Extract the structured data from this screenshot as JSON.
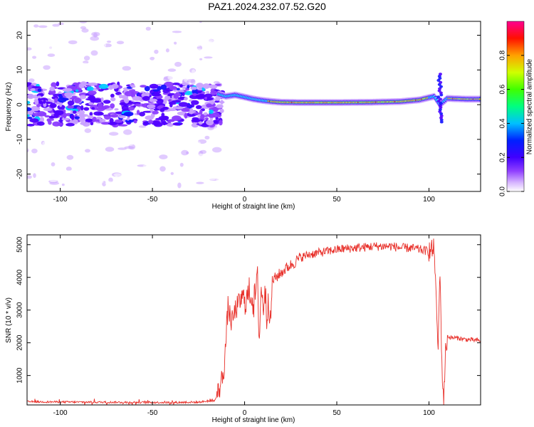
{
  "title": "PAZ1.2024.232.07.52.G20",
  "chart_data": [
    {
      "type": "heatmap",
      "title": "PAZ1.2024.232.07.52.G20",
      "xlabel": "Height of straight line (km)",
      "ylabel": "Frequency (Hz)",
      "xlim": [
        -118,
        128
      ],
      "ylim": [
        -25,
        24
      ],
      "xticks": [
        "-100",
        "-50",
        "0",
        "50",
        "100"
      ],
      "yticks": [
        "20",
        "10",
        "0",
        "-10",
        "-20"
      ],
      "colorbar": {
        "label": "Normalized spectral amplitude",
        "range": [
          0,
          1
        ],
        "ticks": [
          "0.0",
          "0.2",
          "0.4",
          "0.6",
          "0.8"
        ],
        "colors": [
          "#ffffff",
          "#b080ff",
          "#6000ff",
          "#0000ff",
          "#00e0ff",
          "#00ff60",
          "#c0ff00",
          "#ffb000",
          "#ff0000",
          "#ff00a0"
        ]
      },
      "signal_trace": {
        "description_free": true,
        "x": [
          -14,
          -10,
          -5,
          0,
          5,
          10,
          15,
          20,
          30,
          50,
          70,
          85,
          95,
          103,
          106,
          110,
          120,
          128
        ],
        "y": [
          3.0,
          2.4,
          2.8,
          2.2,
          1.6,
          1.2,
          0.9,
          0.7,
          0.6,
          0.6,
          0.7,
          0.9,
          1.4,
          2.4,
          0.0,
          1.8,
          1.6,
          1.6
        ]
      },
      "grid": false
    },
    {
      "type": "line",
      "xlabel": "Height of straight line (km)",
      "ylabel": "SNR (10 * v/v)",
      "xlim": [
        -118,
        128
      ],
      "ylim": [
        100,
        5300
      ],
      "xticks": [
        "-100",
        "-50",
        "0",
        "50",
        "100"
      ],
      "yticks": [
        "5000",
        "4000",
        "3000",
        "2000",
        "1000"
      ],
      "color": "#e8302a",
      "series": [
        {
          "x": [
            -118,
            -100,
            -80,
            -60,
            -40,
            -25,
            -16,
            -13,
            -11,
            -9,
            -7,
            -5,
            -3,
            -1,
            1,
            3,
            5,
            7,
            8,
            9,
            10,
            11,
            12,
            13,
            14,
            15,
            17,
            20,
            23,
            27,
            30,
            35,
            40,
            45,
            50,
            55,
            60,
            65,
            70,
            75,
            80,
            85,
            90,
            95,
            100,
            103,
            104,
            105,
            106,
            107,
            108,
            109,
            110,
            112,
            115,
            120,
            125,
            128
          ],
          "y": [
            200,
            190,
            185,
            180,
            175,
            185,
            240,
            700,
            1300,
            3100,
            2600,
            3000,
            3200,
            3400,
            3300,
            3600,
            3200,
            3900,
            2100,
            3800,
            3000,
            3700,
            2800,
            3500,
            2500,
            3900,
            4000,
            4150,
            4300,
            4450,
            4600,
            4700,
            4750,
            4800,
            4850,
            4880,
            4900,
            4920,
            4950,
            4950,
            4950,
            4900,
            4900,
            4850,
            4800,
            4850,
            3000,
            1850,
            4350,
            1200,
            300,
            1700,
            2200,
            2150,
            2150,
            2100,
            2080,
            2060
          ]
        }
      ],
      "grid": false
    }
  ]
}
